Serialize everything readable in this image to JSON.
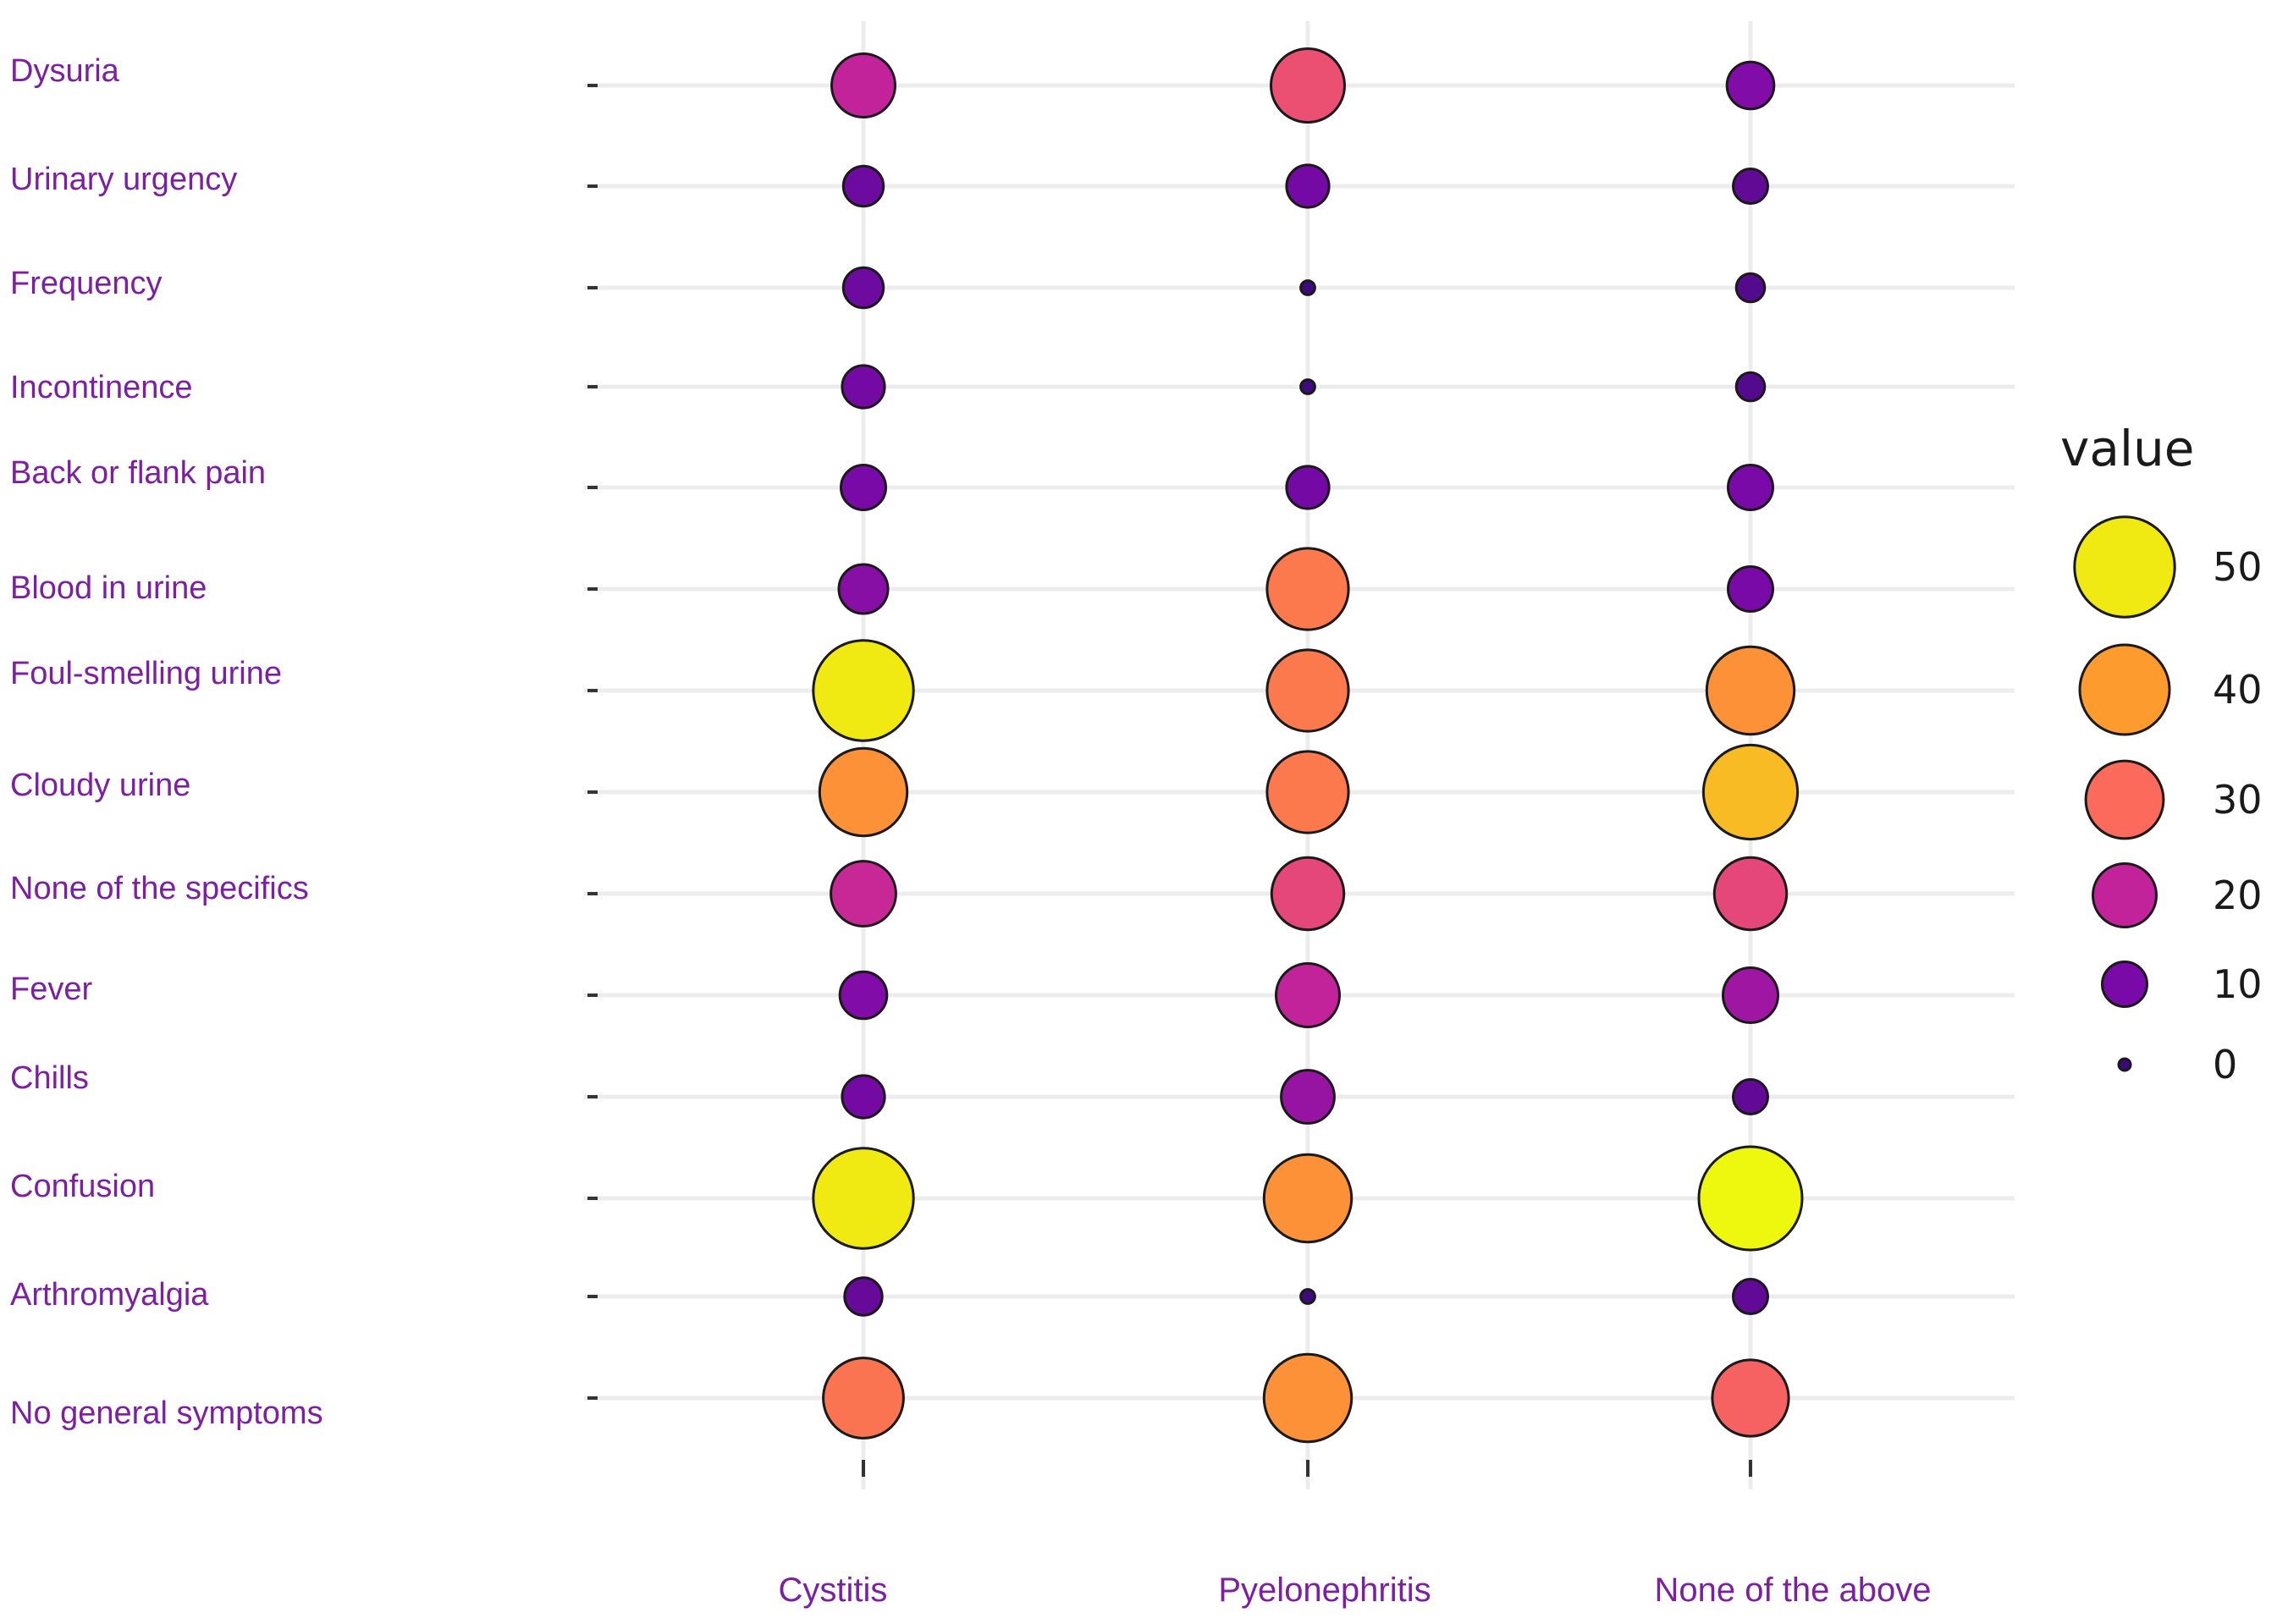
{
  "chart_data": {
    "type": "scatter",
    "subtype": "bubble-matrix",
    "title": "",
    "xlabel": "",
    "ylabel": "",
    "x_categories": [
      "Cystitis",
      "Pyelonephritis",
      "None of the above"
    ],
    "y_categories": [
      "Dysuria",
      "Urinary urgency",
      "Frequency",
      "Incontinence",
      "Back or flank pain",
      "Blood in urine",
      "Foul-smelling urine",
      "Cloudy urine",
      "None of the specifics",
      "Fever",
      "Chills",
      "Confusion",
      "Arthromyalgia",
      "No general symptoms"
    ],
    "series": [
      {
        "name": "Cystitis",
        "values": [
          20,
          8,
          8,
          9,
          10,
          12,
          50,
          38,
          21,
          11,
          9,
          50,
          7,
          32
        ]
      },
      {
        "name": "Pyelonephritis",
        "values": [
          27,
          9,
          1,
          1,
          9,
          33,
          33,
          33,
          26,
          20,
          14,
          38,
          1,
          38
        ]
      },
      {
        "name": "None of the above",
        "values": [
          11,
          6,
          4,
          4,
          10,
          10,
          38,
          44,
          26,
          15,
          6,
          53,
          6,
          29
        ]
      }
    ],
    "legend": {
      "title": "value",
      "position": "right",
      "entries": [
        {
          "label": "50",
          "value": 50
        },
        {
          "label": "40",
          "value": 40
        },
        {
          "label": "30",
          "value": 30
        },
        {
          "label": "20",
          "value": 20
        },
        {
          "label": "10",
          "value": 10
        },
        {
          "label": "0",
          "value": 0
        }
      ]
    },
    "color_scale": {
      "name": "plasma",
      "domain": [
        0,
        53
      ],
      "stops": [
        {
          "value": 0,
          "color": "#3a0a7a"
        },
        {
          "value": 10,
          "color": "#7a0aa8"
        },
        {
          "value": 20,
          "color": "#c2229a"
        },
        {
          "value": 26,
          "color": "#e6477a"
        },
        {
          "value": 30,
          "color": "#fb6a5a"
        },
        {
          "value": 40,
          "color": "#fd9b2e"
        },
        {
          "value": 50,
          "color": "#f1ea12"
        },
        {
          "value": 53,
          "color": "#eef70e"
        }
      ]
    },
    "grid": true
  }
}
